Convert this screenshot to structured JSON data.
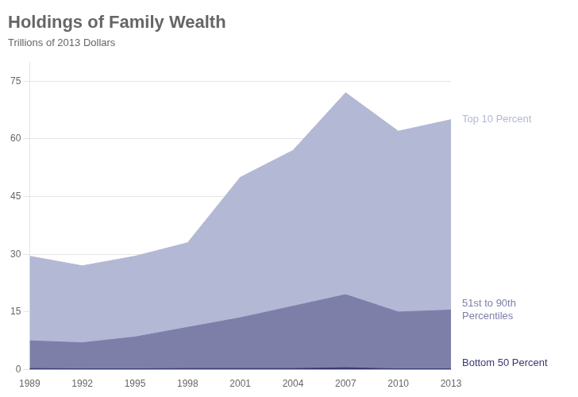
{
  "chart_data": {
    "type": "area",
    "title": "Holdings of Family Wealth",
    "subtitle": "Trillions of 2013 Dollars",
    "x": [
      1989,
      1992,
      1995,
      1998,
      2001,
      2004,
      2007,
      2010,
      2013
    ],
    "series": [
      {
        "name": "Top 10 Percent",
        "color": "#b3b8d4",
        "values": [
          29.5,
          27.0,
          29.5,
          33.0,
          50.0,
          57.0,
          72.0,
          62.0,
          65.0
        ]
      },
      {
        "name": "51st to 90th\nPercentiles",
        "color": "#7d7fa8",
        "values": [
          7.5,
          7.0,
          8.5,
          11.0,
          13.5,
          16.5,
          19.5,
          15.0,
          15.5
        ]
      },
      {
        "name": "Bottom 50 Percent",
        "color": "#3a3870",
        "values": [
          0.3,
          0.2,
          0.2,
          0.3,
          0.3,
          0.3,
          0.5,
          0.2,
          0.2
        ]
      }
    ],
    "xlim": [
      1989,
      2013
    ],
    "xticks": [
      1989,
      1992,
      1995,
      1998,
      2001,
      2004,
      2007,
      2010,
      2013
    ],
    "ylim": [
      0,
      80
    ],
    "yticks": [
      0,
      15,
      30,
      45,
      60,
      75
    ],
    "stacked": false,
    "grid": true
  }
}
